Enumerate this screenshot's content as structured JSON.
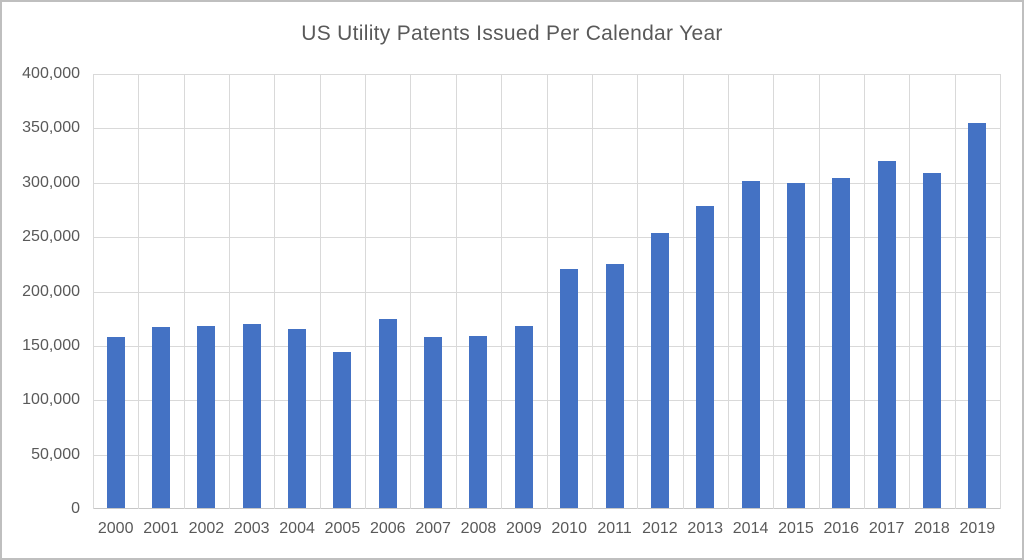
{
  "chart_data": {
    "type": "bar",
    "title": "US Utility Patents Issued Per Calendar Year",
    "categories": [
      "2000",
      "2001",
      "2002",
      "2003",
      "2004",
      "2005",
      "2006",
      "2007",
      "2008",
      "2009",
      "2010",
      "2011",
      "2012",
      "2013",
      "2014",
      "2015",
      "2016",
      "2017",
      "2018",
      "2019"
    ],
    "values": [
      157494,
      166035,
      167331,
      169023,
      164290,
      143806,
      173772,
      157282,
      157772,
      167349,
      219614,
      224505,
      253155,
      277835,
      300678,
      298407,
      303049,
      318829,
      307759,
      354430
    ],
    "xlabel": "",
    "ylabel": "",
    "ylim": [
      0,
      400000
    ],
    "y_tick_step": 50000,
    "y_tick_labels": [
      "0",
      "50,000",
      "100,000",
      "150,000",
      "200,000",
      "250,000",
      "300,000",
      "350,000",
      "400,000"
    ],
    "grid": true,
    "vertical_grid": true,
    "legend_position": "none",
    "bar_color": "#4472c4"
  },
  "colors": {
    "bar": "#4472c4",
    "gridline": "#d9d9d9",
    "axis_line": "#c6c6c6",
    "text": "#595959",
    "background": "#ffffff",
    "border": "#bfbfbf"
  }
}
